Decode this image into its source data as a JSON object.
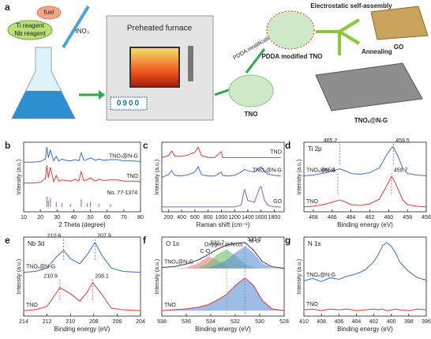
{
  "schematic": {
    "panel": "a",
    "ti_reagent": "Ti reagent",
    "nb_reagent": "Nb reagent",
    "fuel": "fuel",
    "acid": "HNO₃",
    "furnace": "Preheated furnace",
    "display": "0900",
    "pdda_step": "PDDA modification",
    "pdda_product": "PDDA modified TNO",
    "tno": "TNO",
    "assembly": "Electrostatic self-assembly",
    "annealing": "Annealing",
    "go": "GO",
    "product": "TNOₓ@N-G"
  },
  "chart_data": [
    {
      "type": "line",
      "panel": "b",
      "xlabel": "2 Theta (degree)",
      "ylabel": "Intensity (a.u.)",
      "xlim": [
        10,
        80
      ],
      "xticks": [
        10,
        20,
        30,
        40,
        50,
        60,
        70,
        80
      ],
      "series": [
        {
          "name": "TNOₓ@N-G",
          "color": "#3a6fc1",
          "x": [
            10,
            15,
            20,
            23,
            23.9,
            24.8,
            26,
            28,
            29.5,
            31,
            33,
            35,
            38,
            41,
            43,
            44.5,
            46,
            48,
            50,
            53,
            55,
            58,
            62,
            66,
            70,
            75,
            80
          ],
          "values": [
            7.1,
            7.1,
            7.2,
            7.6,
            9.5,
            7.8,
            9.0,
            7.3,
            8.0,
            7.3,
            7.6,
            7.4,
            7.3,
            7.5,
            7.3,
            8.6,
            7.4,
            7.5,
            7.8,
            7.4,
            7.6,
            7.4,
            7.5,
            7.5,
            7.3,
            7.3,
            7.2
          ]
        },
        {
          "name": "TNO",
          "color": "#e03a3a",
          "x": [
            10,
            15,
            20,
            23,
            23.9,
            24.8,
            26,
            28,
            29.5,
            31,
            33,
            35,
            38,
            41,
            43,
            44.5,
            46,
            48,
            50,
            53,
            55,
            58,
            62,
            66,
            70,
            75,
            80
          ],
          "values": [
            3.8,
            3.8,
            3.9,
            4.5,
            6.6,
            4.6,
            6.3,
            4.0,
            5.0,
            4.1,
            4.3,
            4.2,
            4.1,
            4.4,
            4.1,
            5.6,
            4.2,
            4.3,
            4.6,
            4.1,
            4.4,
            4.2,
            4.3,
            4.3,
            4.1,
            4.1,
            4.0
          ]
        },
        {
          "name": "No. 77-1374",
          "color": "#9b59b6",
          "style": "sticks",
          "x": [
            23.9,
            24.8,
            26,
            29.5,
            33,
            38,
            44.5,
            48,
            50,
            55,
            62
          ],
          "values": [
            1.6,
            1.0,
            1.4,
            0.8,
            0.6,
            0.5,
            1.2,
            0.6,
            0.8,
            0.5,
            0.5
          ]
        }
      ]
    },
    {
      "type": "line",
      "panel": "c",
      "xlabel": "Raman shift (cm⁻¹)",
      "ylabel": "Intensity (a.u.)",
      "xlim": [
        100,
        1950
      ],
      "xticks": [
        200,
        400,
        600,
        800,
        1000,
        1200,
        1400,
        1600,
        1800
      ],
      "series": [
        {
          "name": "TNO",
          "color": "#e03a3a",
          "x": [
            100,
            200,
            250,
            300,
            400,
            500,
            600,
            650,
            700,
            800,
            900,
            1000,
            1020,
            1100,
            1200,
            1300,
            1350,
            1400,
            1500,
            1580,
            1600,
            1650,
            1700,
            1800,
            1900
          ],
          "values": [
            8.0,
            8.3,
            9.0,
            8.2,
            8.2,
            8.4,
            8.8,
            9.6,
            8.3,
            8.0,
            8.0,
            8.9,
            8.0,
            8.0,
            8.0,
            8.0,
            8.0,
            8.0,
            8.0,
            8.0,
            8.0,
            8.0,
            8.0,
            8.0,
            8.0
          ]
        },
        {
          "name": "TNOₓ@N-G",
          "color": "#3a6fc1",
          "x": [
            100,
            200,
            250,
            300,
            400,
            500,
            600,
            650,
            700,
            800,
            900,
            1000,
            1020,
            1100,
            1200,
            1300,
            1350,
            1400,
            1500,
            1580,
            1600,
            1650,
            1700,
            1800,
            1900
          ],
          "values": [
            5.0,
            5.4,
            6.0,
            5.3,
            5.2,
            5.4,
            5.8,
            6.6,
            5.4,
            5.2,
            5.2,
            5.8,
            5.3,
            5.2,
            5.3,
            5.8,
            6.2,
            6.0,
            5.8,
            6.5,
            6.6,
            5.9,
            5.5,
            5.3,
            5.2
          ]
        },
        {
          "name": "GO",
          "color": "#9b59b6",
          "x": [
            100,
            200,
            250,
            300,
            400,
            500,
            600,
            650,
            700,
            800,
            900,
            1000,
            1020,
            1100,
            1200,
            1300,
            1350,
            1400,
            1500,
            1580,
            1600,
            1650,
            1700,
            1800,
            1900
          ],
          "values": [
            0.5,
            0.5,
            0.5,
            0.5,
            0.5,
            0.5,
            0.5,
            0.5,
            0.5,
            0.5,
            0.5,
            0.5,
            0.5,
            0.5,
            0.5,
            0.8,
            3.2,
            1.5,
            1.2,
            3.4,
            3.6,
            1.6,
            0.8,
            0.5,
            0.5
          ]
        }
      ]
    },
    {
      "type": "line",
      "panel": "d",
      "title": "Ti 2p",
      "xlabel": "Binding energy (eV)",
      "ylabel": "Intensity (a.u.)",
      "xlim": [
        469,
        456
      ],
      "xticks": [
        468,
        466,
        464,
        462,
        460,
        458,
        456
      ],
      "series": [
        {
          "name": "TNOₓ@N-G",
          "color": "#3a6fc1",
          "x": [
            469,
            468,
            467,
            466,
            465.5,
            465.2,
            464.5,
            464,
            463,
            462,
            461,
            460.3,
            459.7,
            459.5,
            459,
            458.5,
            458,
            457,
            456
          ],
          "values": [
            6.0,
            6.1,
            6.3,
            6.6,
            6.8,
            6.9,
            6.6,
            6.3,
            6.2,
            6.4,
            7.0,
            8.5,
            9.6,
            9.7,
            8.5,
            7.0,
            6.3,
            6.1,
            6.0
          ]
        },
        {
          "name": "TNO",
          "color": "#e03a3a",
          "x": [
            469,
            468,
            467,
            466,
            465.5,
            465.2,
            464.5,
            464,
            463,
            462,
            461,
            460.3,
            459.7,
            459.5,
            459,
            458.5,
            458,
            457,
            456
          ],
          "values": [
            2.0,
            2.1,
            2.3,
            2.6,
            2.8,
            2.9,
            2.6,
            2.3,
            2.2,
            2.4,
            3.0,
            4.5,
            5.9,
            5.6,
            4.3,
            2.9,
            2.3,
            2.1,
            2.0
          ]
        }
      ],
      "markers": [
        {
          "x": 465.2,
          "series": 0
        },
        {
          "x": 459.5,
          "series": 0
        },
        {
          "x": 465.4,
          "series": 1
        },
        {
          "x": 459.7,
          "series": 1
        }
      ]
    },
    {
      "type": "line",
      "panel": "e",
      "title": "Nb 3d",
      "xlabel": "Binding energy (eV)",
      "ylabel": "Intensity (a.u.)",
      "xlim": [
        214,
        204
      ],
      "xticks": [
        214,
        212,
        210,
        208,
        206,
        204
      ],
      "series": [
        {
          "name": "TNOₓ@N-G",
          "color": "#3a6fc1",
          "x": [
            214,
            213,
            212,
            211.2,
            210.6,
            210,
            209.2,
            208.5,
            207.9,
            207.3,
            206.5,
            205.5,
            204
          ],
          "values": [
            6.0,
            6.1,
            6.5,
            7.8,
            8.6,
            7.6,
            7.0,
            8.2,
            9.5,
            8.0,
            6.5,
            6.1,
            6.0
          ]
        },
        {
          "name": "TNO",
          "color": "#e03a3a",
          "x": [
            214,
            213,
            212,
            211.2,
            210.9,
            210,
            209.2,
            208.5,
            208.1,
            207.3,
            206.5,
            205.5,
            204
          ],
          "values": [
            1.5,
            1.6,
            2.0,
            3.6,
            4.2,
            3.5,
            2.6,
            3.8,
            4.8,
            3.4,
            1.8,
            1.6,
            1.5
          ]
        }
      ],
      "markers": [
        {
          "x": 210.6,
          "series": 0
        },
        {
          "x": 207.9,
          "series": 0
        },
        {
          "x": 210.9,
          "series": 1
        },
        {
          "x": 208.1,
          "series": 1
        }
      ]
    },
    {
      "type": "line",
      "panel": "f",
      "title": "O 1s",
      "xlabel": "Binding energy (eV)",
      "ylabel": "Intensity (a.u.)",
      "xlim": [
        538,
        528
      ],
      "xticks": [
        538,
        536,
        534,
        532,
        530,
        528
      ],
      "series": [
        {
          "name": "C-O",
          "color": "#e87a7a",
          "fill": true,
          "x": [
            538,
            537,
            536,
            535,
            534.2,
            533.5,
            532.7,
            532,
            531.2,
            530.5,
            529.8,
            529,
            528
          ],
          "values": [
            6,
            6,
            6.1,
            6.6,
            7.4,
            7.0,
            6.3,
            6.05,
            6,
            6,
            6,
            6,
            6
          ]
        },
        {
          "name": "Oxygen defects",
          "color": "#6cbf6c",
          "fill": true,
          "x": [
            538,
            537,
            536,
            535,
            534.2,
            533.5,
            532.7,
            532,
            531.2,
            530.5,
            529.8,
            529,
            528
          ],
          "values": [
            6,
            6,
            6,
            6.1,
            6.6,
            7.6,
            8.2,
            7.5,
            6.5,
            6.1,
            6,
            6,
            6
          ]
        },
        {
          "name": "M-O",
          "color": "#5b8fd6",
          "fill": true,
          "x": [
            538,
            537,
            536,
            535,
            534.2,
            533.5,
            532.7,
            532,
            531.2,
            530.5,
            529.8,
            529,
            528
          ],
          "values": [
            6,
            6,
            6,
            6,
            6.1,
            6.4,
            7.0,
            7.8,
            8.6,
            7.8,
            6.6,
            6.1,
            6
          ]
        },
        {
          "name": "TNOₓ@N-G",
          "color": "#333333",
          "x": [
            538,
            537,
            536,
            535,
            534.2,
            533.5,
            532.7,
            532,
            531.2,
            530.5,
            529.8,
            529,
            528
          ],
          "values": [
            6.1,
            6.2,
            6.5,
            7.0,
            7.6,
            8.2,
            8.7,
            8.9,
            9.0,
            8.1,
            6.8,
            6.2,
            6.0
          ]
        },
        {
          "name": "TNO",
          "color": "#e03a3a",
          "fillColor": "#5b8fd6",
          "x": [
            538,
            537,
            536,
            535,
            534.2,
            533.5,
            532.7,
            532,
            531.2,
            530.5,
            529.8,
            529,
            528
          ],
          "values": [
            1.1,
            1.2,
            1.3,
            1.5,
            1.8,
            2.3,
            3.0,
            4.0,
            4.9,
            4.0,
            2.3,
            1.3,
            1.1
          ]
        }
      ],
      "markers": [
        {
          "x": 532.7,
          "series": 1
        },
        {
          "x": 531.2,
          "series": 2
        }
      ]
    },
    {
      "type": "line",
      "panel": "g",
      "title": "N 1s",
      "xlabel": "Binding energy (eV)",
      "ylabel": "Intensity (a.u.)",
      "xlim": [
        410,
        396
      ],
      "xticks": [
        410,
        408,
        406,
        404,
        402,
        400,
        398,
        396
      ],
      "series": [
        {
          "name": "TNOₓ@N-G",
          "color": "#3a6fc1",
          "x": [
            410,
            409,
            408,
            407,
            406,
            405,
            404,
            403,
            402,
            401.5,
            401,
            400.5,
            400,
            399.5,
            399,
            398,
            397,
            396
          ],
          "values": [
            5.0,
            5.3,
            4.9,
            5.4,
            5.2,
            5.6,
            5.9,
            6.4,
            7.5,
            8.4,
            9.6,
            10.0,
            9.5,
            8.6,
            7.4,
            6.2,
            5.4,
            5.1
          ]
        },
        {
          "name": "TNO",
          "color": "#e03a3a",
          "x": [
            410,
            409,
            408,
            407,
            406,
            405,
            404,
            403,
            402,
            401.5,
            401,
            400.5,
            400,
            399.5,
            399,
            398,
            397,
            396
          ],
          "values": [
            1.2,
            1.3,
            1.1,
            1.3,
            1.2,
            1.3,
            1.1,
            1.2,
            1.3,
            1.2,
            1.3,
            1.1,
            1.2,
            1.3,
            1.2,
            1.1,
            1.3,
            1.2
          ]
        }
      ]
    }
  ]
}
